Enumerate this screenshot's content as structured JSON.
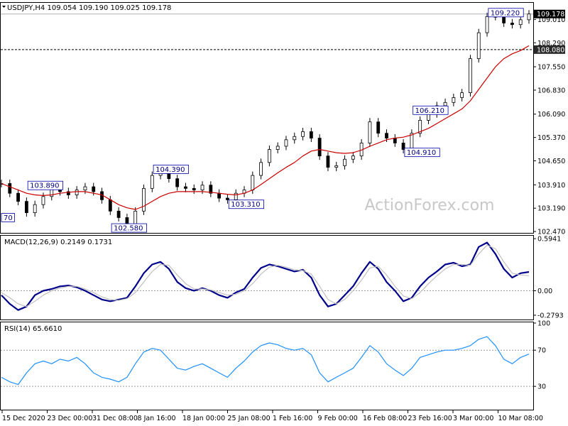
{
  "chart_data": {
    "type": "line",
    "watermark": "ActionForex.com",
    "x_labels": [
      "15 Dec 2020",
      "23 Dec 00:00",
      "31 Dec 08:00",
      "8 Jan 16:00",
      "18 Jan 00:00",
      "25 Jan 08:00",
      "1 Feb 16:00",
      "9 Feb 00:00",
      "16 Feb 08:00",
      "23 Feb 16:00",
      "3 Mar 00:00",
      "10 Mar 08:00"
    ],
    "panels": [
      {
        "id": "price",
        "header": "USDJPY,H4  109.054 109.190 109.025 109.178",
        "y_ticks": [
          109.01,
          108.29,
          107.55,
          106.83,
          106.09,
          105.37,
          104.65,
          103.91,
          103.19,
          102.47
        ],
        "y_tick_labels": [
          "109.010",
          "108.290",
          "107.550",
          "106.830",
          "106.090",
          "105.370",
          "104.650",
          "103.910",
          "103.190",
          "102.470"
        ],
        "ylim": [
          102.45,
          109.5
        ],
        "current_price": 109.178,
        "current_price_label": "109.178",
        "ref_level": 108.08,
        "ref_level_label": "108.080",
        "series": [
          {
            "name": "price",
            "color": "#000000",
            "values": [
              103.95,
              103.65,
              103.4,
              103.05,
              103.3,
              103.55,
              103.9,
              103.7,
              103.6,
              103.75,
              103.85,
              103.7,
              103.45,
              103.1,
              102.9,
              102.7,
              103.1,
              103.8,
              104.2,
              104.35,
              104.1,
              103.85,
              103.8,
              103.75,
              103.9,
              103.65,
              103.5,
              103.45,
              103.65,
              103.75,
              104.2,
              104.6,
              105.0,
              105.1,
              105.3,
              105.4,
              105.55,
              105.35,
              104.8,
              104.45,
              104.5,
              104.7,
              104.8,
              105.2,
              105.85,
              105.5,
              105.35,
              105.2,
              105.0,
              105.5,
              105.9,
              106.1,
              106.35,
              106.45,
              106.6,
              106.75,
              107.8,
              108.6,
              109.1,
              109.1,
              108.9,
              108.85,
              109.0,
              109.178
            ],
            "note": "approximate closes read from the candlestick chart"
          },
          {
            "name": "moving average",
            "color": "#cc0000",
            "values": [
              103.95,
              103.85,
              103.75,
              103.65,
              103.6,
              103.58,
              103.6,
              103.65,
              103.68,
              103.7,
              103.7,
              103.65,
              103.6,
              103.45,
              103.3,
              103.2,
              103.15,
              103.25,
              103.4,
              103.55,
              103.65,
              103.7,
              103.7,
              103.7,
              103.7,
              103.68,
              103.65,
              103.62,
              103.6,
              103.65,
              103.75,
              103.92,
              104.1,
              104.28,
              104.45,
              104.6,
              104.8,
              104.95,
              105.0,
              104.95,
              104.9,
              104.88,
              104.9,
              104.98,
              105.1,
              105.2,
              105.3,
              105.35,
              105.38,
              105.45,
              105.55,
              105.65,
              105.8,
              105.95,
              106.1,
              106.25,
              106.5,
              106.85,
              107.2,
              107.55,
              107.8,
              107.95,
              108.05,
              108.2
            ]
          }
        ],
        "annotations": [
          {
            "text": "103.890",
            "x": 4,
            "y": 103.89
          },
          {
            "text": "102.580",
            "x": 14,
            "y": 102.58
          },
          {
            "text": "104.390",
            "x": 19,
            "y": 104.39
          },
          {
            "text": "103.310",
            "x": 28,
            "y": 103.31
          },
          {
            "text": "106.210",
            "x": 50,
            "y": 106.21
          },
          {
            "text": "104.910",
            "x": 49,
            "y": 104.91
          },
          {
            "text": "109.220",
            "x": 59,
            "y": 109.22
          },
          {
            "text": "70",
            "x": 0,
            "y": 102.9
          }
        ]
      },
      {
        "id": "macd",
        "header": "MACD(12,26,9) 0.2149 0.1731",
        "y_ticks": [
          0.5941,
          0.0,
          -0.2793
        ],
        "y_tick_labels": [
          "0.5941",
          "0.00",
          "-0.2793"
        ],
        "ylim": [
          -0.32,
          0.62
        ],
        "series": [
          {
            "name": "MACD",
            "color": "#00008b",
            "values": [
              -0.05,
              -0.15,
              -0.22,
              -0.18,
              -0.05,
              0.0,
              0.02,
              0.05,
              0.06,
              0.04,
              0.0,
              -0.05,
              -0.1,
              -0.12,
              -0.1,
              -0.08,
              0.05,
              0.2,
              0.3,
              0.33,
              0.25,
              0.1,
              0.03,
              0.0,
              0.03,
              0.0,
              -0.05,
              -0.08,
              -0.02,
              0.02,
              0.15,
              0.26,
              0.3,
              0.28,
              0.25,
              0.22,
              0.24,
              0.15,
              -0.05,
              -0.18,
              -0.15,
              -0.05,
              0.05,
              0.2,
              0.33,
              0.25,
              0.1,
              0.0,
              -0.12,
              -0.08,
              0.05,
              0.15,
              0.22,
              0.3,
              0.32,
              0.28,
              0.3,
              0.5,
              0.55,
              0.42,
              0.25,
              0.15,
              0.2,
              0.215
            ]
          },
          {
            "name": "signal",
            "color": "#c0c0c0",
            "values": [
              -0.02,
              -0.08,
              -0.15,
              -0.18,
              -0.12,
              -0.05,
              0.0,
              0.03,
              0.05,
              0.05,
              0.02,
              -0.02,
              -0.07,
              -0.1,
              -0.11,
              -0.09,
              -0.02,
              0.1,
              0.22,
              0.3,
              0.29,
              0.18,
              0.08,
              0.02,
              0.02,
              0.01,
              -0.02,
              -0.05,
              -0.04,
              0.0,
              0.08,
              0.19,
              0.27,
              0.29,
              0.27,
              0.24,
              0.23,
              0.19,
              0.05,
              -0.1,
              -0.15,
              -0.1,
              0.0,
              0.12,
              0.26,
              0.28,
              0.18,
              0.05,
              -0.06,
              -0.09,
              -0.02,
              0.08,
              0.17,
              0.25,
              0.3,
              0.3,
              0.29,
              0.42,
              0.52,
              0.48,
              0.33,
              0.2,
              0.18,
              0.173
            ]
          }
        ]
      },
      {
        "id": "rsi",
        "header": "RSI(14) 65.6610",
        "y_ticks": [
          100,
          70,
          30
        ],
        "y_tick_labels": [
          "100",
          "70",
          "30"
        ],
        "ylim": [
          5,
          100
        ],
        "series": [
          {
            "name": "RSI",
            "color": "#1e90ff",
            "values": [
              40,
              35,
              32,
              45,
              55,
              58,
              55,
              60,
              58,
              62,
              55,
              45,
              40,
              38,
              35,
              40,
              55,
              68,
              72,
              70,
              60,
              50,
              48,
              52,
              55,
              50,
              45,
              40,
              50,
              58,
              68,
              75,
              78,
              76,
              72,
              70,
              72,
              65,
              45,
              35,
              40,
              45,
              50,
              62,
              75,
              68,
              55,
              48,
              42,
              50,
              62,
              65,
              68,
              70,
              70,
              72,
              75,
              82,
              85,
              75,
              60,
              55,
              62,
              65.661
            ]
          }
        ]
      }
    ]
  }
}
